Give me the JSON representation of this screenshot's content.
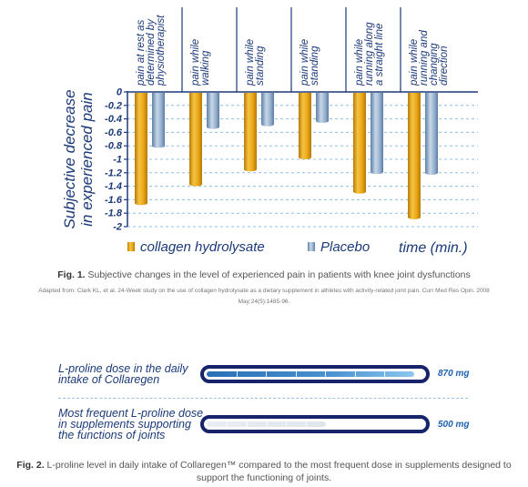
{
  "chart_data": [
    {
      "type": "bar",
      "categories": [
        "pain at rest as determined by physiotherapist",
        "pain while walking",
        "pain while standing",
        "pain while standing",
        "pain while running along a straight line",
        "pain while running and changing direction"
      ],
      "category_lines": [
        [
          "pain at rest as",
          "determined by",
          "physiotherapist"
        ],
        [
          "pain while",
          "walking"
        ],
        [
          "pain while",
          "standing"
        ],
        [
          "pain while",
          "standing"
        ],
        [
          "pain while",
          "running along",
          "a straight line"
        ],
        [
          "pain while",
          "running and",
          "changing",
          "direction"
        ]
      ],
      "series": [
        {
          "name": "collagen hydrolysate",
          "values": [
            -1.65,
            -1.37,
            -1.15,
            -0.97,
            -1.48,
            -1.86
          ]
        },
        {
          "name": "Placebo",
          "values": [
            -0.8,
            -0.52,
            -0.48,
            -0.43,
            -1.19,
            -1.2
          ]
        }
      ],
      "ylabel": "Subjective decrease in experienced pain",
      "ylabel_lines": [
        "Subjective decrease",
        "in experienced pain"
      ],
      "xlabel": "time (min.)",
      "ylim": [
        -2,
        0
      ],
      "yticks": [
        "0",
        "-0.2",
        "-0.4",
        "-0.6",
        "-0.8",
        "-1",
        "-1.2",
        "-1.4",
        "-1.6",
        "-1.8",
        "-2"
      ],
      "grid": true,
      "colors": {
        "collagen": "#e8a515",
        "placebo": "#8aa7c8"
      }
    },
    {
      "type": "bar",
      "categories": [
        "L-proline dose in the daily intake of Collaregen",
        "Most frequent L-proline dose in supplements supporting the functions of joints"
      ],
      "values": [
        870,
        500
      ],
      "unit": "mg"
    }
  ],
  "fig1": {
    "caption_label": "Fig. 1.",
    "caption_text": " Subjective changes in the level of experienced pain in patients with knee joint dysfunctions",
    "source": "Adapted from: Clark KL, et al. 24-Week study on the use of collagen hydrolysate as a dietary supplement in athletes with activity-related joint pain. Curr Med Res Opin. 2008 May;24(5):1485-96."
  },
  "fig2": {
    "row1_label_lines": [
      "L-proline dose in the daily",
      "intake of Collaregen"
    ],
    "row1_value": "870 mg",
    "row2_label_lines": [
      "Most frequent L-proline dose",
      "in supplements supporting",
      "the functions of joints"
    ],
    "row2_value": "500 mg",
    "fill_fractions": [
      0.96,
      0.55
    ],
    "caption_label": "Fig. 2.",
    "caption_text": " L-proline level in daily intake of Collaregen™ compared to the most frequent dose in supplements designed to support the functioning of joints."
  }
}
